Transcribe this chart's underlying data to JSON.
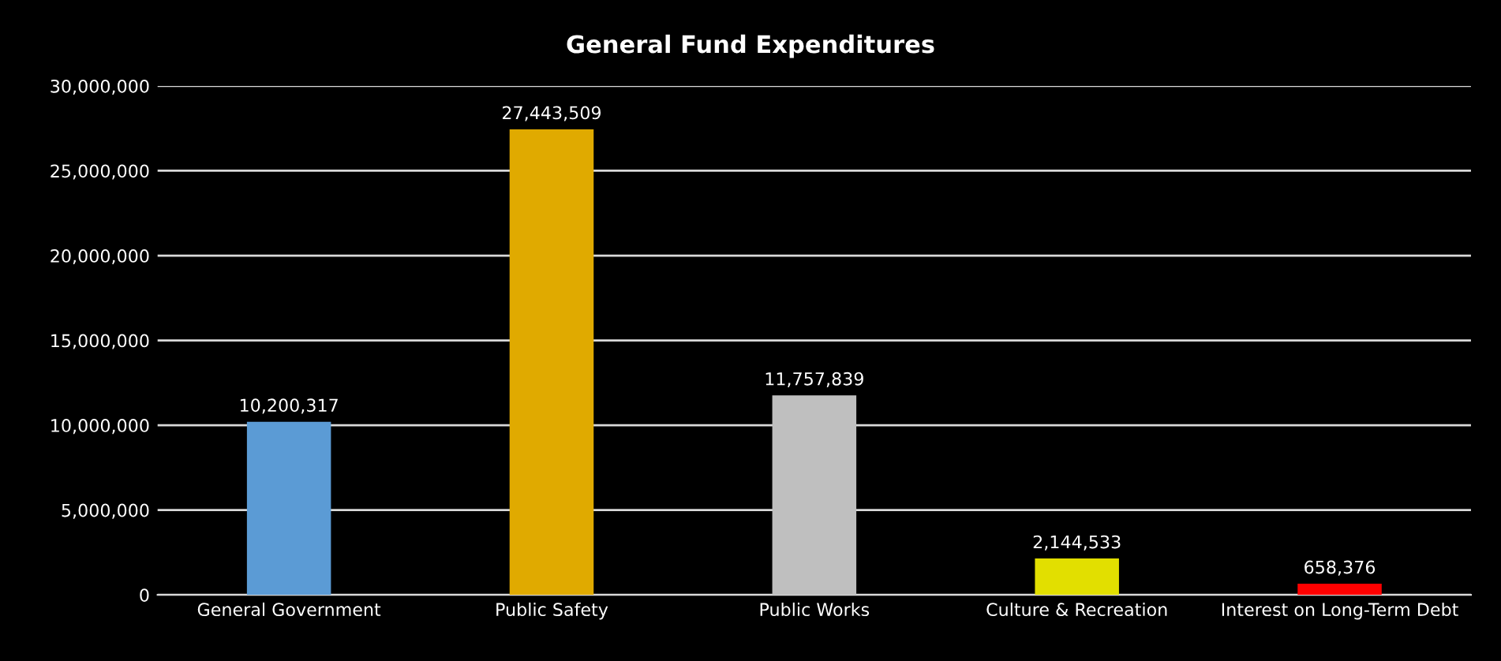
{
  "chart_data": {
    "type": "bar",
    "title": "General Fund Expenditures",
    "categories": [
      "General Government",
      "Public Safety",
      "Public Works",
      "Culture & Recreation",
      "Interest on Long-Term Debt"
    ],
    "values": [
      10200317,
      27443509,
      11757839,
      2144533,
      658376
    ],
    "colors": [
      "#5b9bd5",
      "#e0aa00",
      "#bfbfbf",
      "#e2df00",
      "#ff0000"
    ],
    "ylim": [
      0,
      30000000
    ],
    "yticks": [
      {
        "value": 0,
        "label": "0"
      },
      {
        "value": 5000000,
        "label": "5,000,000"
      },
      {
        "value": 10000000,
        "label": "10,000,000"
      },
      {
        "value": 15000000,
        "label": "15,000,000"
      },
      {
        "value": 20000000,
        "label": "20,000,000"
      },
      {
        "value": 25000000,
        "label": "25,000,000"
      },
      {
        "value": 30000000,
        "label": "30,000,000"
      }
    ],
    "value_labels": [
      "10,200,317",
      "27,443,509",
      "11,757,839",
      "2,144,533",
      "658,376"
    ],
    "grid": "y"
  }
}
